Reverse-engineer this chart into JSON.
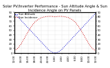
{
  "title": "Solar PV/Inverter Performance - Sun Altitude Angle & Sun Incidence Angle on PV Panels",
  "blue_label": "Sun Altitude",
  "red_label": "Sun Incidence",
  "x": [
    0,
    1,
    2,
    3,
    4,
    5,
    6,
    7,
    8,
    9,
    10,
    11,
    12,
    13,
    14,
    15,
    16,
    17,
    18,
    19,
    20,
    21,
    22,
    23,
    24
  ],
  "blue_y": [
    88,
    80,
    72,
    64,
    56,
    48,
    40,
    32,
    24,
    16,
    8,
    2,
    0,
    2,
    8,
    16,
    24,
    32,
    40,
    48,
    56,
    64,
    72,
    80,
    88
  ],
  "red_y": [
    5,
    10,
    20,
    33,
    46,
    58,
    68,
    74,
    78,
    80,
    81,
    81,
    80,
    81,
    81,
    80,
    78,
    74,
    68,
    58,
    46,
    33,
    20,
    10,
    5
  ],
  "blue_color": "#0000cc",
  "red_color": "#cc0000",
  "bg_color": "#ffffff",
  "grid_color": "#aaaaaa",
  "ylim": [
    0,
    90
  ],
  "xlim": [
    0,
    24
  ],
  "xtick_positions": [
    0,
    2,
    4,
    6,
    8,
    10,
    12,
    14,
    16,
    18,
    20,
    22,
    24
  ],
  "xtick_labels": [
    "12:00",
    "14:00",
    "16:00",
    "18:00",
    "20:00",
    "22:00",
    "0:00",
    "2:00",
    "4:00",
    "6:00",
    "8:00",
    "10:00",
    "12:00"
  ],
  "yticks": [
    0,
    10,
    20,
    30,
    40,
    50,
    60,
    70,
    80,
    90
  ],
  "title_fontsize": 3.8,
  "tick_fontsize": 2.8,
  "legend_fontsize": 2.8,
  "dot_size": 0.5
}
